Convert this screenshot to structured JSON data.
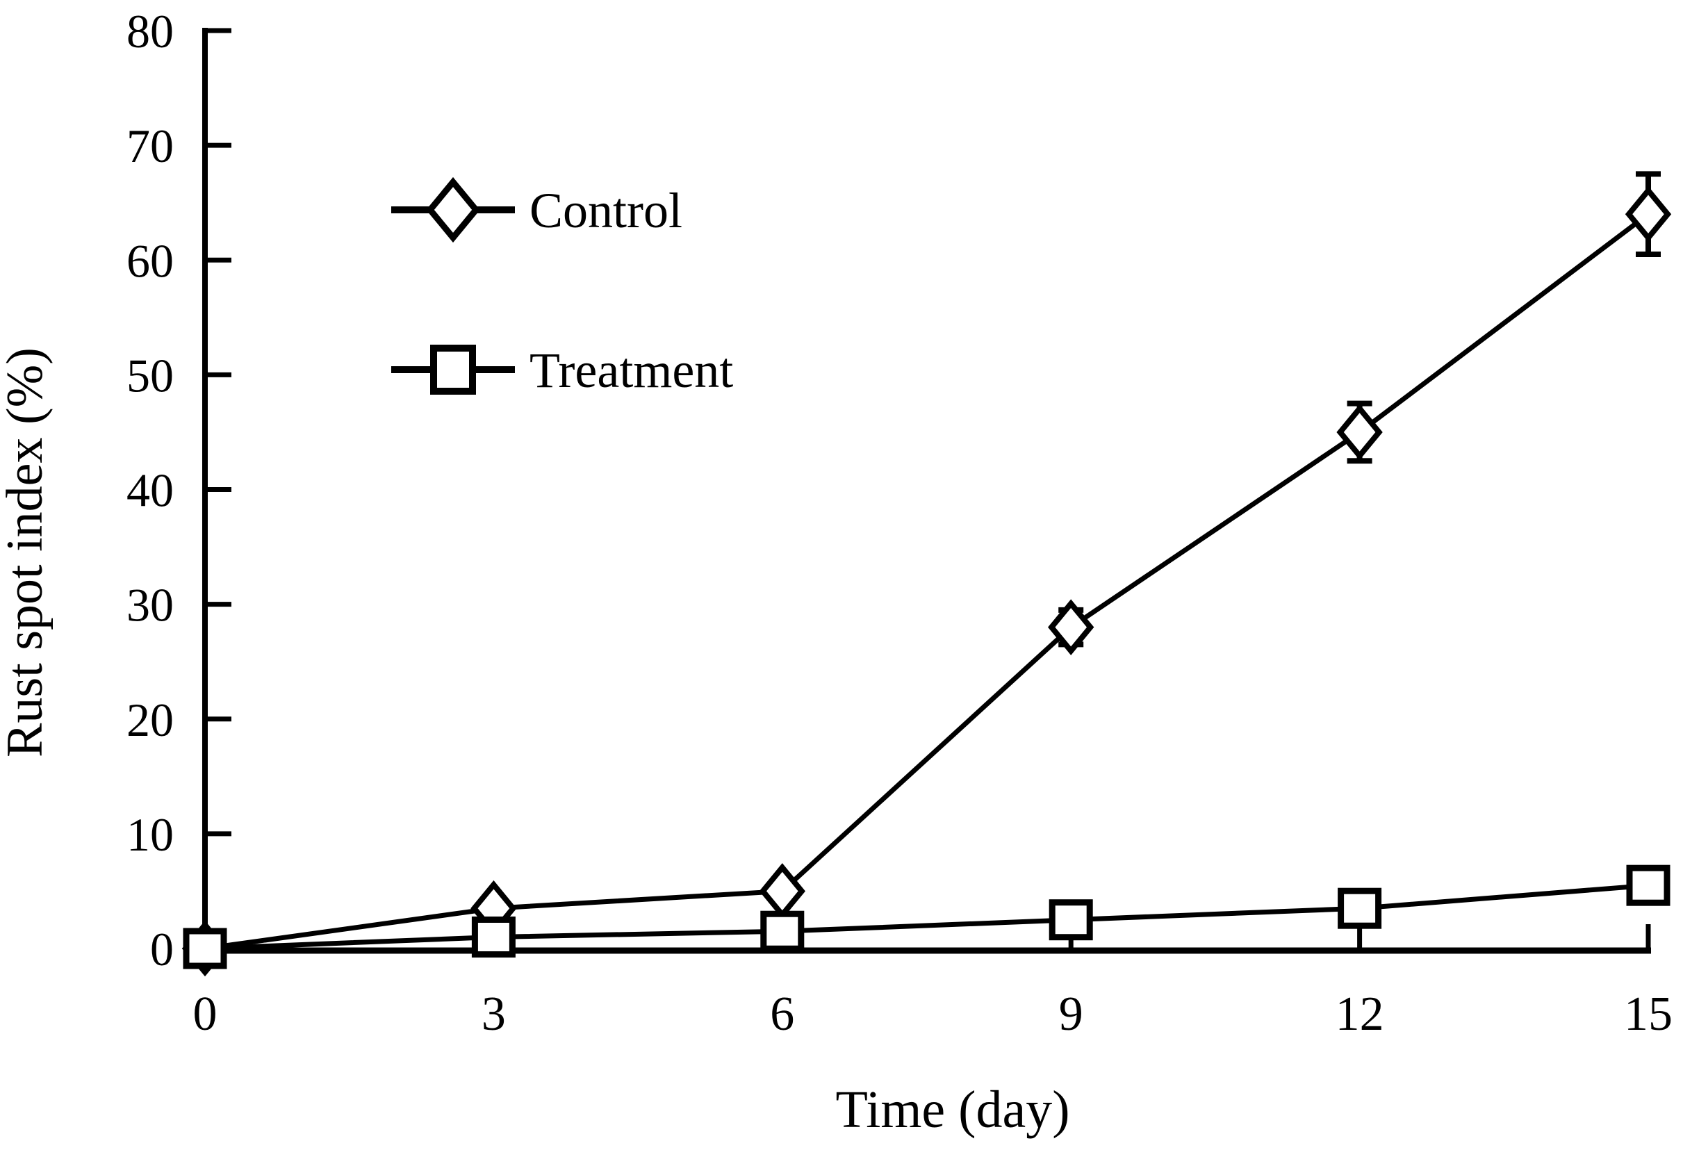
{
  "chart_data": {
    "type": "line",
    "title": "",
    "xlabel": "Time (day)",
    "ylabel": "Rust spot index (%)",
    "x": [
      0,
      3,
      6,
      9,
      12,
      15
    ],
    "xlim": [
      0,
      15
    ],
    "ylim": [
      0,
      80
    ],
    "y_tick_step": 10,
    "x_tick_labels": [
      "0",
      "3",
      "6",
      "9",
      "12",
      "15"
    ],
    "y_tick_labels": [
      "0",
      "10",
      "20",
      "30",
      "40",
      "50",
      "60",
      "70",
      "80"
    ],
    "grid": false,
    "legend_position": "upper-left-inside",
    "line_color": "#000000",
    "background_color": "#ffffff",
    "series": [
      {
        "name": "Control",
        "marker": "diamond",
        "marker_fill": "#ffffff",
        "values": [
          0,
          3.5,
          5,
          28,
          45,
          64
        ],
        "errors": [
          0,
          0,
          0,
          1.5,
          2.5,
          3.5
        ]
      },
      {
        "name": "Treatment",
        "marker": "square",
        "marker_fill": "#ffffff",
        "values": [
          0,
          1,
          1.5,
          2.5,
          3.5,
          5.5
        ],
        "errors": [
          0,
          0,
          0,
          0,
          0,
          0
        ]
      }
    ]
  },
  "legend": {
    "items": [
      {
        "label": "Control",
        "icon": "diamond-marker-icon"
      },
      {
        "label": "Treatment",
        "icon": "square-marker-icon"
      }
    ]
  }
}
